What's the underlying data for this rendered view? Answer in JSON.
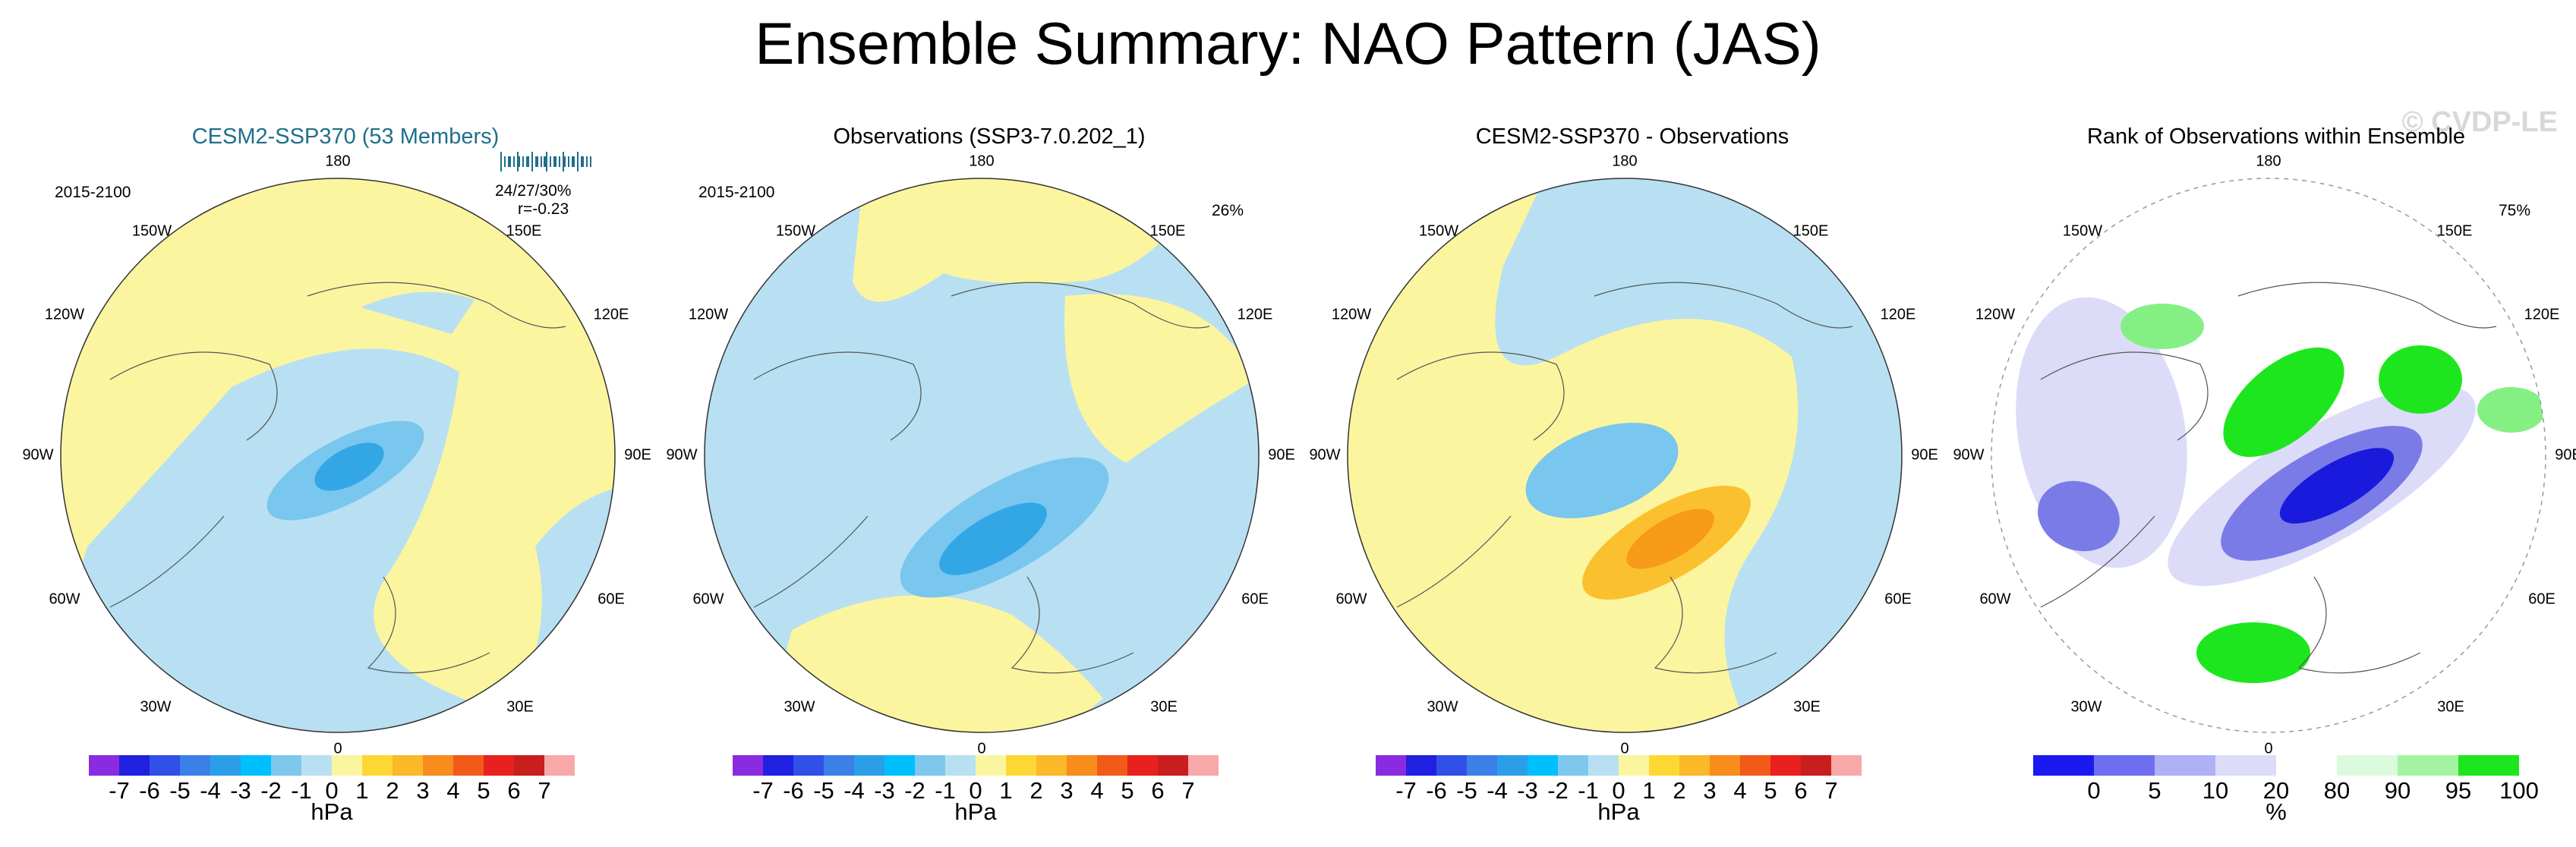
{
  "title": "Ensemble Summary: NAO Pattern (JAS)",
  "watermark": "© CVDP-LE",
  "colors": {
    "blue_1": "#b8e0f2",
    "blue_2": "#79c6ee",
    "blue_3": "#33a7e6",
    "yellow_1": "#fbf5a0",
    "orange_2": "#fbc02e",
    "orange_3": "#f79a1a",
    "rank_low": "#1a1adc",
    "rank_mid": "#7b7be8",
    "rank_pale": "#dcdcf8",
    "rank_high": "#1ee61e",
    "rank_mid_g": "#84f084",
    "rank_pale_g": "#d6f8d6"
  },
  "panels": [
    {
      "title": "CESM2-SSP370 (53 Members)",
      "period": "2015-2100",
      "stat_line1": "24/27/30%",
      "stat_line2": "r=-0.23",
      "corner_pct": ""
    },
    {
      "title": "Observations (SSP3-7.0.202_1)",
      "period": "2015-2100",
      "stat_line1": "",
      "stat_line2": "",
      "corner_pct": "26%"
    },
    {
      "title": "CESM2-SSP370 - Observations",
      "period": "",
      "stat_line1": "",
      "stat_line2": "",
      "corner_pct": ""
    },
    {
      "title": "Rank of Observations within Ensemble",
      "period": "",
      "stat_line1": "",
      "stat_line2": "",
      "corner_pct": "75%"
    }
  ],
  "lon_labels": {
    "top": "180",
    "bottom": "0",
    "l1": "150W",
    "l2": "120W",
    "l3": "90W",
    "l4": "60W",
    "l5": "30W",
    "r1": "150E",
    "r2": "120E",
    "r3": "90E",
    "r4": "60E",
    "r5": "30E"
  },
  "chart_data": [
    {
      "type": "heatmap",
      "title": "CESM2-SSP370 (53 Members)",
      "projection": "north polar stereographic",
      "units": "hPa",
      "levels": [
        -7,
        -6,
        -5,
        -4,
        -3,
        -2,
        -1,
        0,
        1,
        2,
        3,
        4,
        5,
        6,
        7
      ],
      "colorbar_ticks": [
        "-7",
        "-6",
        "-5",
        "-4",
        "-3",
        "-2",
        "-1",
        "0",
        "1",
        "2",
        "3",
        "4",
        "5",
        "6",
        "7"
      ],
      "colorbar_colors": [
        "#8a2be2",
        "#2020e0",
        "#3050e8",
        "#3a80e8",
        "#2a9fe8",
        "#00bfff",
        "#7ec8ee",
        "#b8e0f2",
        "#fbf5a0",
        "#fdd835",
        "#fbb828",
        "#f88c1c",
        "#f25a18",
        "#e82020",
        "#c81e1e",
        "#f8a8a8"
      ],
      "min_value": -2,
      "max_value": 1
    },
    {
      "type": "heatmap",
      "title": "Observations (SSP3-7.0.202_1)",
      "projection": "north polar stereographic",
      "units": "hPa",
      "levels": [
        -7,
        -6,
        -5,
        -4,
        -3,
        -2,
        -1,
        0,
        1,
        2,
        3,
        4,
        5,
        6,
        7
      ],
      "colorbar_ticks": [
        "-7",
        "-6",
        "-5",
        "-4",
        "-3",
        "-2",
        "-1",
        "0",
        "1",
        "2",
        "3",
        "4",
        "5",
        "6",
        "7"
      ],
      "colorbar_colors": [
        "#8a2be2",
        "#2020e0",
        "#3050e8",
        "#3a80e8",
        "#2a9fe8",
        "#00bfff",
        "#7ec8ee",
        "#b8e0f2",
        "#fbf5a0",
        "#fdd835",
        "#fbb828",
        "#f88c1c",
        "#f25a18",
        "#e82020",
        "#c81e1e",
        "#f8a8a8"
      ],
      "min_value": -3,
      "max_value": 1
    },
    {
      "type": "heatmap",
      "title": "CESM2-SSP370 - Observations",
      "projection": "north polar stereographic",
      "units": "hPa",
      "levels": [
        -7,
        -6,
        -5,
        -4,
        -3,
        -2,
        -1,
        0,
        1,
        2,
        3,
        4,
        5,
        6,
        7
      ],
      "colorbar_ticks": [
        "-7",
        "-6",
        "-5",
        "-4",
        "-3",
        "-2",
        "-1",
        "0",
        "1",
        "2",
        "3",
        "4",
        "5",
        "6",
        "7"
      ],
      "colorbar_colors": [
        "#8a2be2",
        "#2020e0",
        "#3050e8",
        "#3a80e8",
        "#2a9fe8",
        "#00bfff",
        "#7ec8ee",
        "#b8e0f2",
        "#fbf5a0",
        "#fdd835",
        "#fbb828",
        "#f88c1c",
        "#f25a18",
        "#e82020",
        "#c81e1e",
        "#f8a8a8"
      ],
      "min_value": -2,
      "max_value": 3
    },
    {
      "type": "heatmap",
      "title": "Rank of Observations within Ensemble",
      "projection": "north polar stereographic",
      "units": "%",
      "levels": [
        0,
        5,
        10,
        20,
        80,
        90,
        95,
        100
      ],
      "colorbar_ticks": [
        "0",
        "5",
        "10",
        "20",
        "80",
        "90",
        "95",
        "100"
      ],
      "colorbar_colors": [
        "#1a1af0",
        "#6e6ef0",
        "#b0b0f4",
        "#dcdcf8",
        "#ffffff",
        "#dcfadc",
        "#a4f4a4",
        "#1ee61e"
      ]
    }
  ]
}
